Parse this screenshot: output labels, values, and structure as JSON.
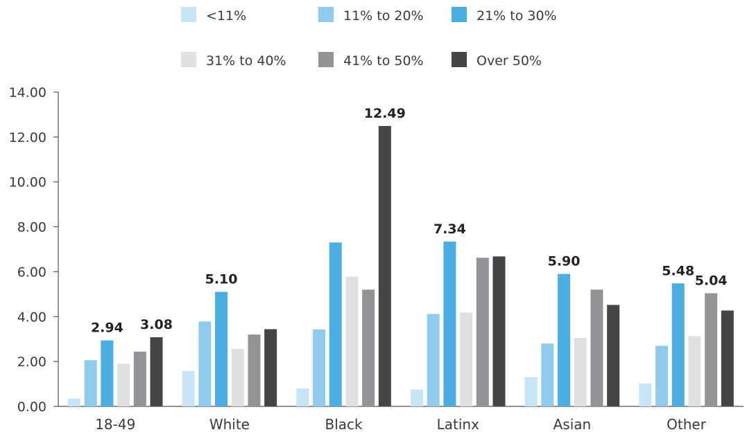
{
  "chart_data": {
    "type": "bar",
    "title": "",
    "xlabel": "",
    "ylabel": "",
    "ylim": [
      0,
      14
    ],
    "yticks": [
      "0.00",
      "2.00",
      "4.00",
      "6.00",
      "8.00",
      "10.00",
      "12.00",
      "14.00"
    ],
    "grid": false,
    "legend_position": "top",
    "categories": [
      "18-49",
      "White",
      "Black",
      "Latinx",
      "Asian",
      "Other"
    ],
    "series": [
      {
        "name": "<11%",
        "color": "#c6e6f7",
        "values": [
          0.35,
          1.58,
          0.8,
          0.75,
          1.3,
          1.02
        ]
      },
      {
        "name": "11% to 20%",
        "color": "#8ecbee",
        "values": [
          2.06,
          3.78,
          3.43,
          4.12,
          2.8,
          2.7
        ]
      },
      {
        "name": "21% to 30%",
        "color": "#4aaee2",
        "values": [
          2.94,
          5.1,
          7.3,
          7.34,
          5.9,
          5.48
        ]
      },
      {
        "name": "31% to 40%",
        "color": "#dfe0e1",
        "values": [
          1.9,
          2.56,
          5.78,
          4.18,
          3.05,
          3.13
        ]
      },
      {
        "name": "41% to 50%",
        "color": "#929396",
        "values": [
          2.44,
          3.2,
          5.2,
          6.62,
          5.2,
          5.04
        ]
      },
      {
        "name": "Over 50%",
        "color": "#444547",
        "values": [
          3.08,
          3.44,
          12.49,
          6.68,
          4.52,
          4.27
        ]
      }
    ],
    "data_labels": [
      {
        "category": "18-49",
        "series": 2,
        "text": "2.94"
      },
      {
        "category": "18-49",
        "series": 5,
        "text": "3.08"
      },
      {
        "category": "White",
        "series": 2,
        "text": "5.10"
      },
      {
        "category": "Black",
        "series": 5,
        "text": "12.49"
      },
      {
        "category": "Latinx",
        "series": 2,
        "text": "7.34"
      },
      {
        "category": "Asian",
        "series": 2,
        "text": "5.90"
      },
      {
        "category": "Other",
        "series": 2,
        "text": "5.48"
      },
      {
        "category": "Other",
        "series": 4,
        "text": "5.04"
      }
    ]
  }
}
